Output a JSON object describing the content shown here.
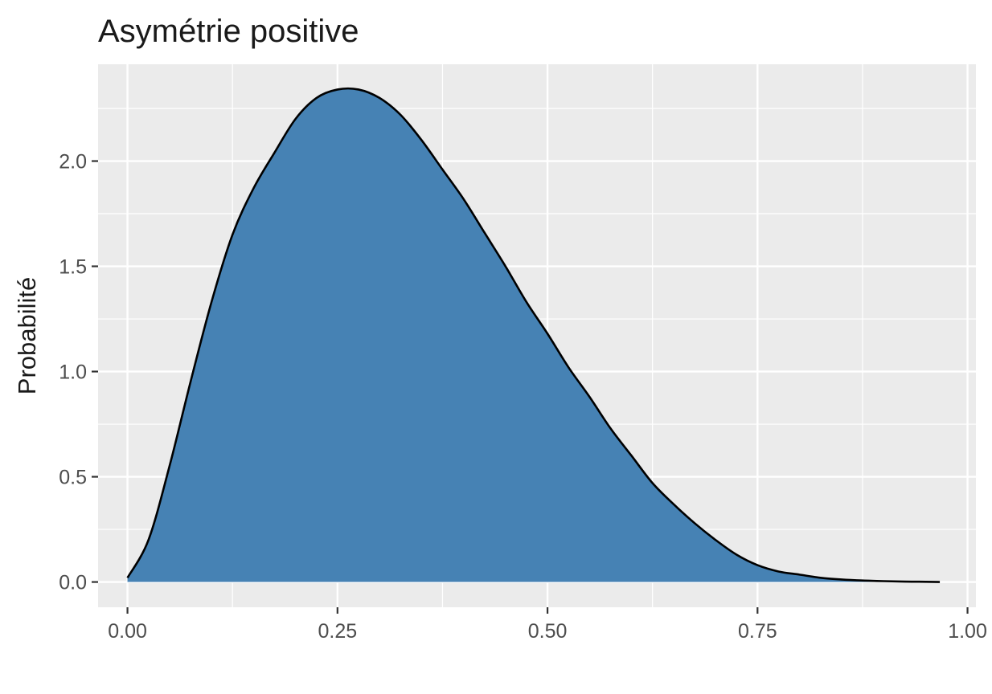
{
  "chart_data": {
    "type": "area",
    "title": "Asymétrie positive",
    "xlabel": "",
    "ylabel": "Probabilité",
    "xlim": [
      -0.035,
      1.01
    ],
    "ylim": [
      -0.12,
      2.46
    ],
    "xticks": [
      0.0,
      0.25,
      0.5,
      0.75,
      1.0
    ],
    "xtick_labels": [
      "0.00",
      "0.25",
      "0.50",
      "0.75",
      "1.00"
    ],
    "yticks": [
      0.0,
      0.5,
      1.0,
      1.5,
      2.0
    ],
    "ytick_labels": [
      "0.0",
      "0.5",
      "1.0",
      "1.5",
      "2.0"
    ],
    "grid": true,
    "fill_color": "#4682b4",
    "line_color": "#000000",
    "panel_color": "#ebebeb",
    "series": [
      {
        "x": [
          0.0,
          0.025,
          0.05,
          0.075,
          0.1,
          0.125,
          0.15,
          0.175,
          0.2,
          0.225,
          0.25,
          0.275,
          0.3,
          0.325,
          0.35,
          0.375,
          0.4,
          0.425,
          0.45,
          0.475,
          0.5,
          0.525,
          0.55,
          0.575,
          0.6,
          0.625,
          0.65,
          0.675,
          0.7,
          0.725,
          0.75,
          0.775,
          0.8,
          0.825,
          0.85,
          0.875,
          0.9,
          0.925,
          0.95,
          0.967
        ],
        "y": [
          0.02,
          0.2,
          0.55,
          0.95,
          1.33,
          1.65,
          1.87,
          2.04,
          2.2,
          2.3,
          2.34,
          2.34,
          2.3,
          2.22,
          2.1,
          1.96,
          1.82,
          1.66,
          1.5,
          1.33,
          1.18,
          1.02,
          0.88,
          0.73,
          0.6,
          0.47,
          0.37,
          0.28,
          0.2,
          0.13,
          0.08,
          0.05,
          0.035,
          0.02,
          0.012,
          0.007,
          0.004,
          0.002,
          0.001,
          0.0
        ]
      }
    ]
  }
}
